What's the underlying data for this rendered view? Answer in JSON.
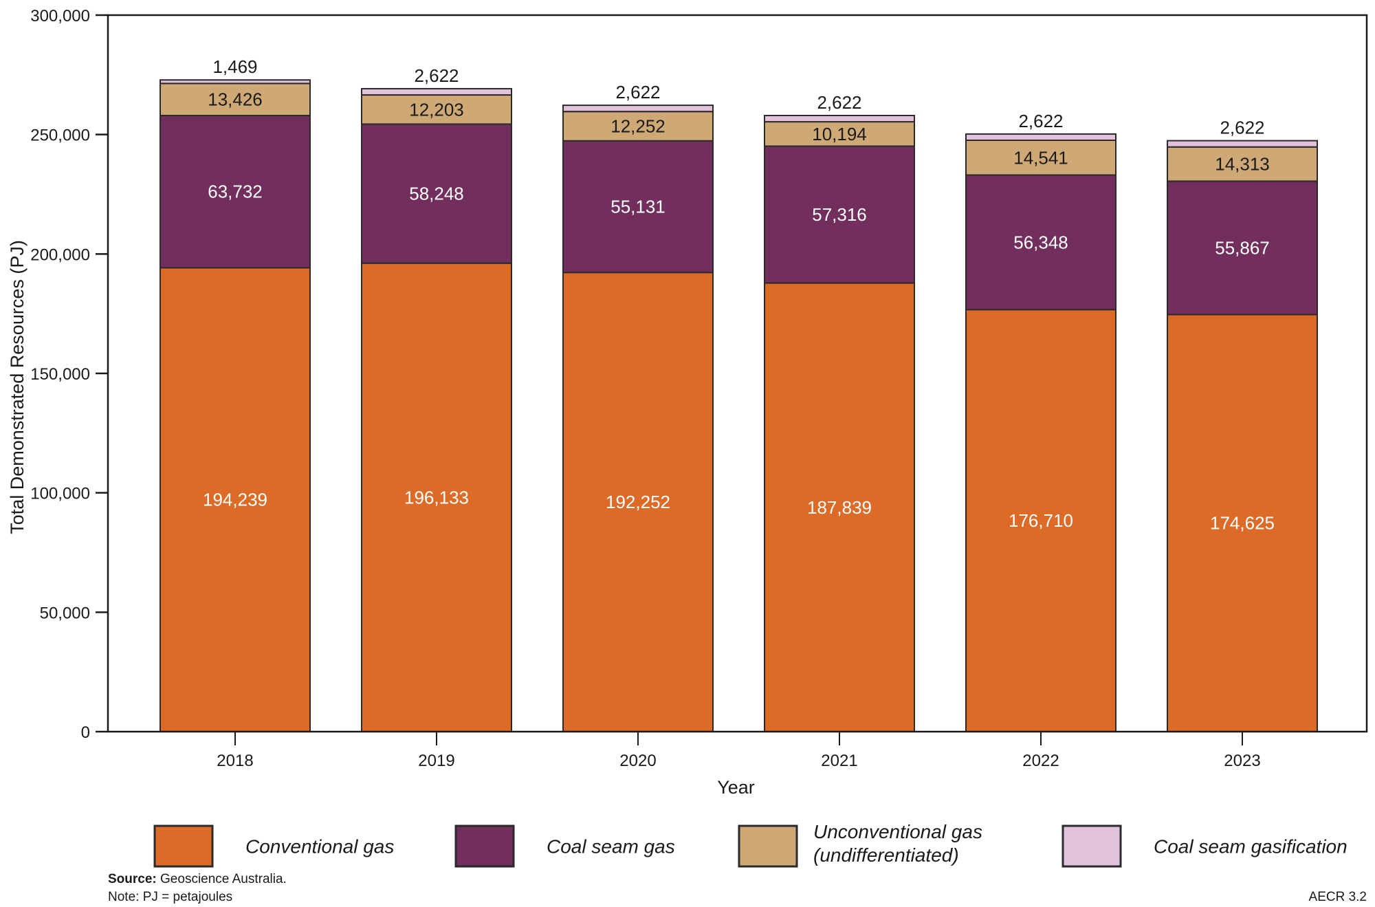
{
  "chart_data": {
    "type": "bar",
    "stacked": true,
    "title": "",
    "xlabel": "Year",
    "ylabel": "Total Demonstrated Resources (PJ)",
    "ylim": [
      0,
      300000
    ],
    "yticks": [
      0,
      50000,
      100000,
      150000,
      200000,
      250000,
      300000
    ],
    "ytick_labels": [
      "0",
      "50,000",
      "100,000",
      "150,000",
      "200,000",
      "250,000",
      "300,000"
    ],
    "categories": [
      "2018",
      "2019",
      "2020",
      "2021",
      "2022",
      "2023"
    ],
    "grid": false,
    "legend_position": "bottom",
    "series": [
      {
        "name": "Conventional gas",
        "color": "#DD6B28",
        "label_color": "#ffffff",
        "values": [
          194239,
          196133,
          192252,
          187839,
          176710,
          174625
        ],
        "labels": [
          "194,239",
          "196,133",
          "192,252",
          "187,839",
          "176,710",
          "174,625"
        ]
      },
      {
        "name": "Coal seam gas",
        "color": "#722E5C",
        "label_color": "#ffffff",
        "values": [
          63732,
          58248,
          55131,
          57316,
          56348,
          55867
        ],
        "labels": [
          "63,732",
          "58,248",
          "55,131",
          "57,316",
          "56,348",
          "55,867"
        ]
      },
      {
        "name": "Unconventional gas (undifferentiated)",
        "legend_lines": [
          "Unconventional gas",
          "(undifferentiated)"
        ],
        "color": "#CFA975",
        "label_color": "#1a1a1a",
        "values": [
          13426,
          12203,
          12252,
          10194,
          14541,
          14313
        ],
        "labels": [
          "13,426",
          "12,203",
          "12,252",
          "10,194",
          "14,541",
          "14,313"
        ]
      },
      {
        "name": "Coal seam gasification",
        "color": "#E2C1DB",
        "label_color": "#1a1a1a",
        "values": [
          1469,
          2622,
          2622,
          2622,
          2622,
          2622
        ],
        "labels": [
          "1,469",
          "2,622",
          "2,622",
          "2,622",
          "2,622",
          "2,622"
        ]
      }
    ]
  },
  "footer": {
    "source_label": "Source:",
    "source_text": " Geoscience Australia.",
    "note": "Note: PJ = petajoules",
    "figure_id": "AECR 3.2"
  }
}
